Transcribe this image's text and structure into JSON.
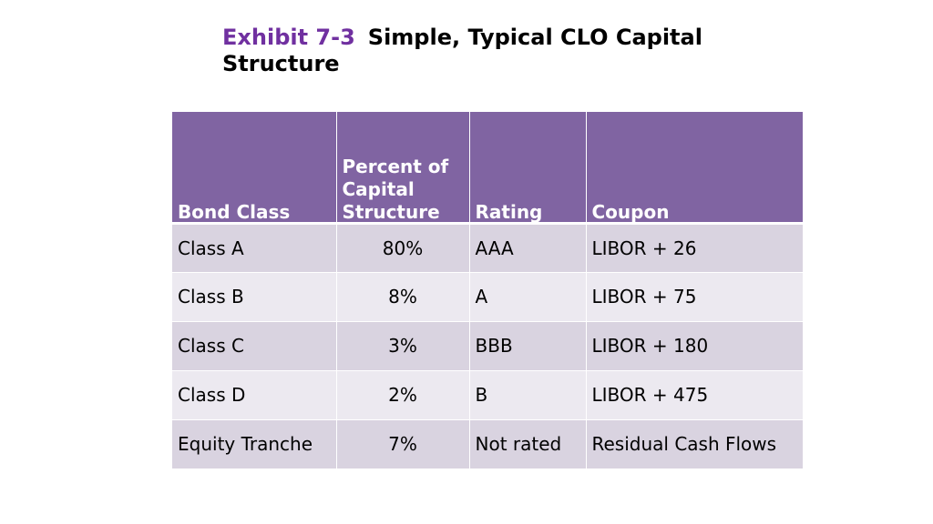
{
  "title": {
    "exhibit": "Exhibit 7-3",
    "text_line1": "Simple, Typical CLO Capital",
    "text_line2": "Structure"
  },
  "table": {
    "headers": {
      "bond_class": "Bond Class",
      "percent_line1": "Percent of",
      "percent_line2": "Capital",
      "percent_line3": "Structure",
      "rating": "Rating",
      "coupon": "Coupon"
    },
    "rows": [
      {
        "bond_class": "Class A",
        "percent": "80%",
        "rating": "AAA",
        "coupon": "LIBOR + 26"
      },
      {
        "bond_class": "Class B",
        "percent": "8%",
        "rating": "A",
        "coupon": "LIBOR + 75"
      },
      {
        "bond_class": "Class C",
        "percent": "3%",
        "rating": "BBB",
        "coupon": "LIBOR + 180"
      },
      {
        "bond_class": "Class D",
        "percent": "2%",
        "rating": "B",
        "coupon": "LIBOR + 475"
      },
      {
        "bond_class": "Equity Tranche",
        "percent": "7%",
        "rating": "Not rated",
        "coupon": "Residual Cash Flows"
      }
    ]
  },
  "colors": {
    "header_bg": "#8064a2",
    "row_odd_bg": "#d9d3e0",
    "row_even_bg": "#ece9f0",
    "exhibit_accent": "#7030a0"
  }
}
